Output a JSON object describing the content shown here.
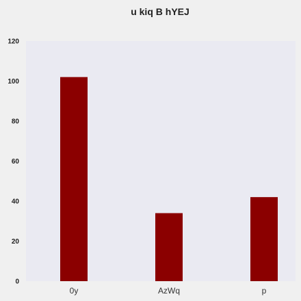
{
  "chart_data": {
    "type": "bar",
    "title": "u kiq B hYEJ",
    "xlabel": "",
    "ylabel": "",
    "categories": [
      "0y",
      "AzWq",
      "p"
    ],
    "values": [
      102,
      34,
      42
    ],
    "ylim": [
      0,
      120
    ],
    "yticks": [
      "0",
      "20",
      "40",
      "60",
      "80",
      "100",
      "120"
    ],
    "grid": false,
    "legend": "none",
    "colors": {
      "bar": "#8b0000",
      "plot_background": "#eaeaf2",
      "figure_background": "#f0f0f0"
    }
  }
}
